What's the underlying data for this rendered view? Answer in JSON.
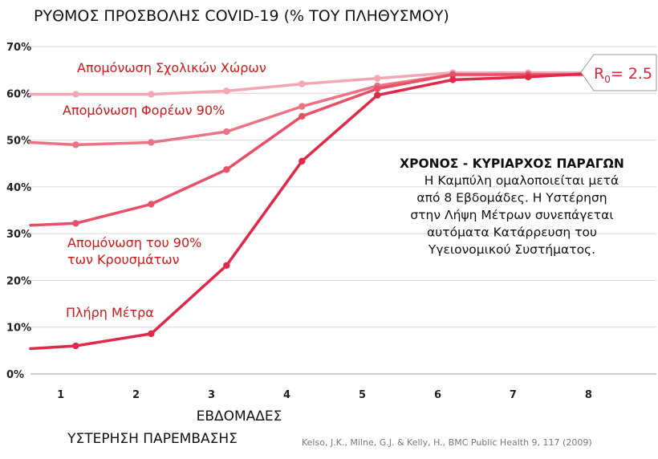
{
  "chart_data": {
    "type": "line",
    "title": "ΡΥΘΜΟΣ ΠΡΟΣΒΟΛΗΣ COVID-19 (% ΤΟΥ ΠΛΗΘΥΣΜΟΥ)",
    "xlabel": "ΕΒΔΟΜΑΔΕΣ",
    "xlabel_sub": "ΥΣΤΕΡΗΣΗ ΠΑΡΕΜΒΑΣΗΣ",
    "x_ticks": [
      "1",
      "2",
      "3",
      "4",
      "5",
      "6",
      "7",
      "8"
    ],
    "y_ticks": [
      "0%",
      "10%",
      "20%",
      "30%",
      "40%",
      "50%",
      "60%",
      "70%"
    ],
    "xlim": [
      0.6,
      8.9
    ],
    "ylim": [
      0,
      70
    ],
    "grid": true,
    "series": [
      {
        "name": "Απομόνωση Σχολικών Χώρων",
        "color": "#f4a7b3",
        "x": [
          0.6,
          1.2,
          2.2,
          3.2,
          4.2,
          5.2,
          6.2,
          7.2,
          8.2
        ],
        "y": [
          59.8,
          59.8,
          59.8,
          60.5,
          62,
          63.2,
          64.4,
          64.4,
          64.4
        ]
      },
      {
        "name": "Απομόνωση Φορέων 90%",
        "color": "#ec7285",
        "x": [
          0.6,
          1.2,
          2.2,
          3.2,
          4.2,
          5.2,
          6.2,
          7.2,
          8.2
        ],
        "y": [
          49.5,
          49,
          49.5,
          51.8,
          57.2,
          61.6,
          64,
          64,
          64
        ]
      },
      {
        "name": "Απομόνωση του 90% των Κρουσμάτων",
        "color": "#e85068",
        "x": [
          0.6,
          1.2,
          2.2,
          3.2,
          4.2,
          5.2,
          6.2,
          7.2,
          8.2
        ],
        "y": [
          31.8,
          32.2,
          36.3,
          43.7,
          55.1,
          61,
          64,
          64,
          64
        ]
      },
      {
        "name": "Πλήρη Μέτρα",
        "color": "#e02848",
        "x": [
          0.6,
          1.2,
          2.2,
          3.2,
          4.2,
          5.2,
          6.2,
          7.2,
          8.2
        ],
        "y": [
          5.4,
          6,
          8.6,
          23.2,
          45.5,
          59.6,
          62.9,
          63.5,
          64.4
        ]
      }
    ],
    "series_labels": [
      {
        "lines": [
          "Απομόνωση Σχολικών Χώρων"
        ]
      },
      {
        "lines": [
          "Απομόνωση Φορέων 90%"
        ]
      },
      {
        "lines": [
          "Απομόνωση του 90%",
          "των Κρουσμάτων"
        ]
      },
      {
        "lines": [
          "Πλήρη Μέτρα"
        ]
      }
    ],
    "annotation": {
      "title": "ΧΡΟΝΟΣ - ΚΥΡΙΑΡΧΟΣ ΠΑΡΑΓΩΝ",
      "lines": [
        "Η Καμπύλη ομαλοποιείται μετά",
        "από 8 Εβδομάδες. Η Υστέρηση",
        "στην Λήψη Μέτρων συνεπάγεται",
        "αυτόματα Κατάρρευση του",
        "Υγειονομικού Συστήματος."
      ]
    },
    "r0_badge": {
      "symbol": "R",
      "subscript": "0",
      "value": "= 2.5",
      "color": "#e0203c"
    },
    "citation": "Kelso, J.K., Milne, G.J. & Kelly, H., BMC Public Health 9, 117 (2009)"
  }
}
